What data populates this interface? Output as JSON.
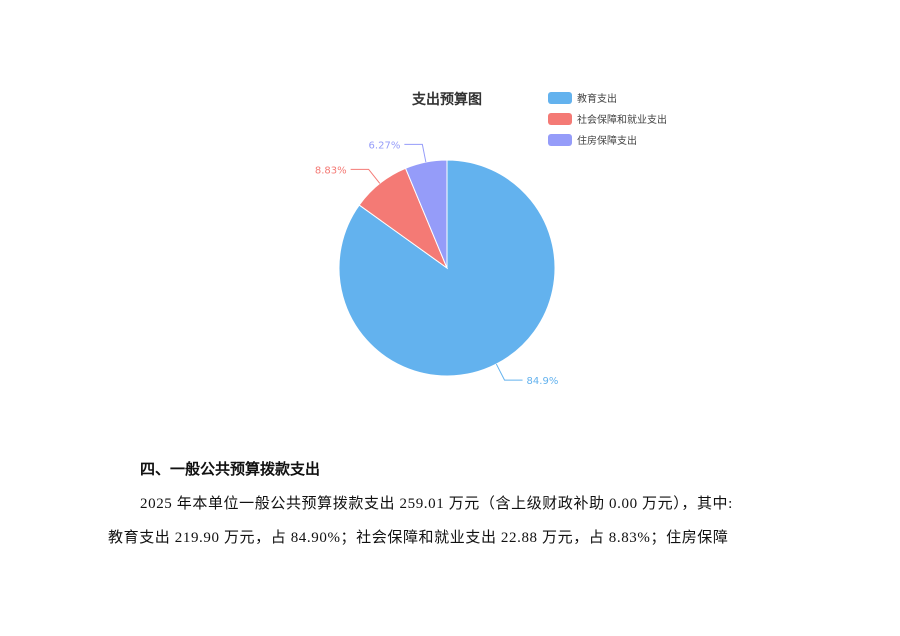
{
  "chart_data": {
    "type": "pie",
    "title": "支出预算图",
    "legend_placement": "top-right",
    "slices": [
      {
        "name": "教育支出",
        "value": 84.9,
        "label": "84.9%",
        "color": "#63b2ee"
      },
      {
        "name": "社会保障和就业支出",
        "value": 8.83,
        "label": "8.83%",
        "color": "#f47a75"
      },
      {
        "name": "住房保障支出",
        "value": 6.27,
        "label": "6.27%",
        "color": "#959cf9"
      }
    ]
  },
  "document": {
    "heading": "四、一般公共预算拨款支出",
    "paragraph_line1": "2025 年本单位一般公共预算拨款支出 259.01 万元（含上级财政补助 0.00 万元），其中:",
    "paragraph_line2": "教育支出 219.90 万元，占 84.90%；社会保障和就业支出 22.88 万元，占 8.83%；住房保障"
  }
}
